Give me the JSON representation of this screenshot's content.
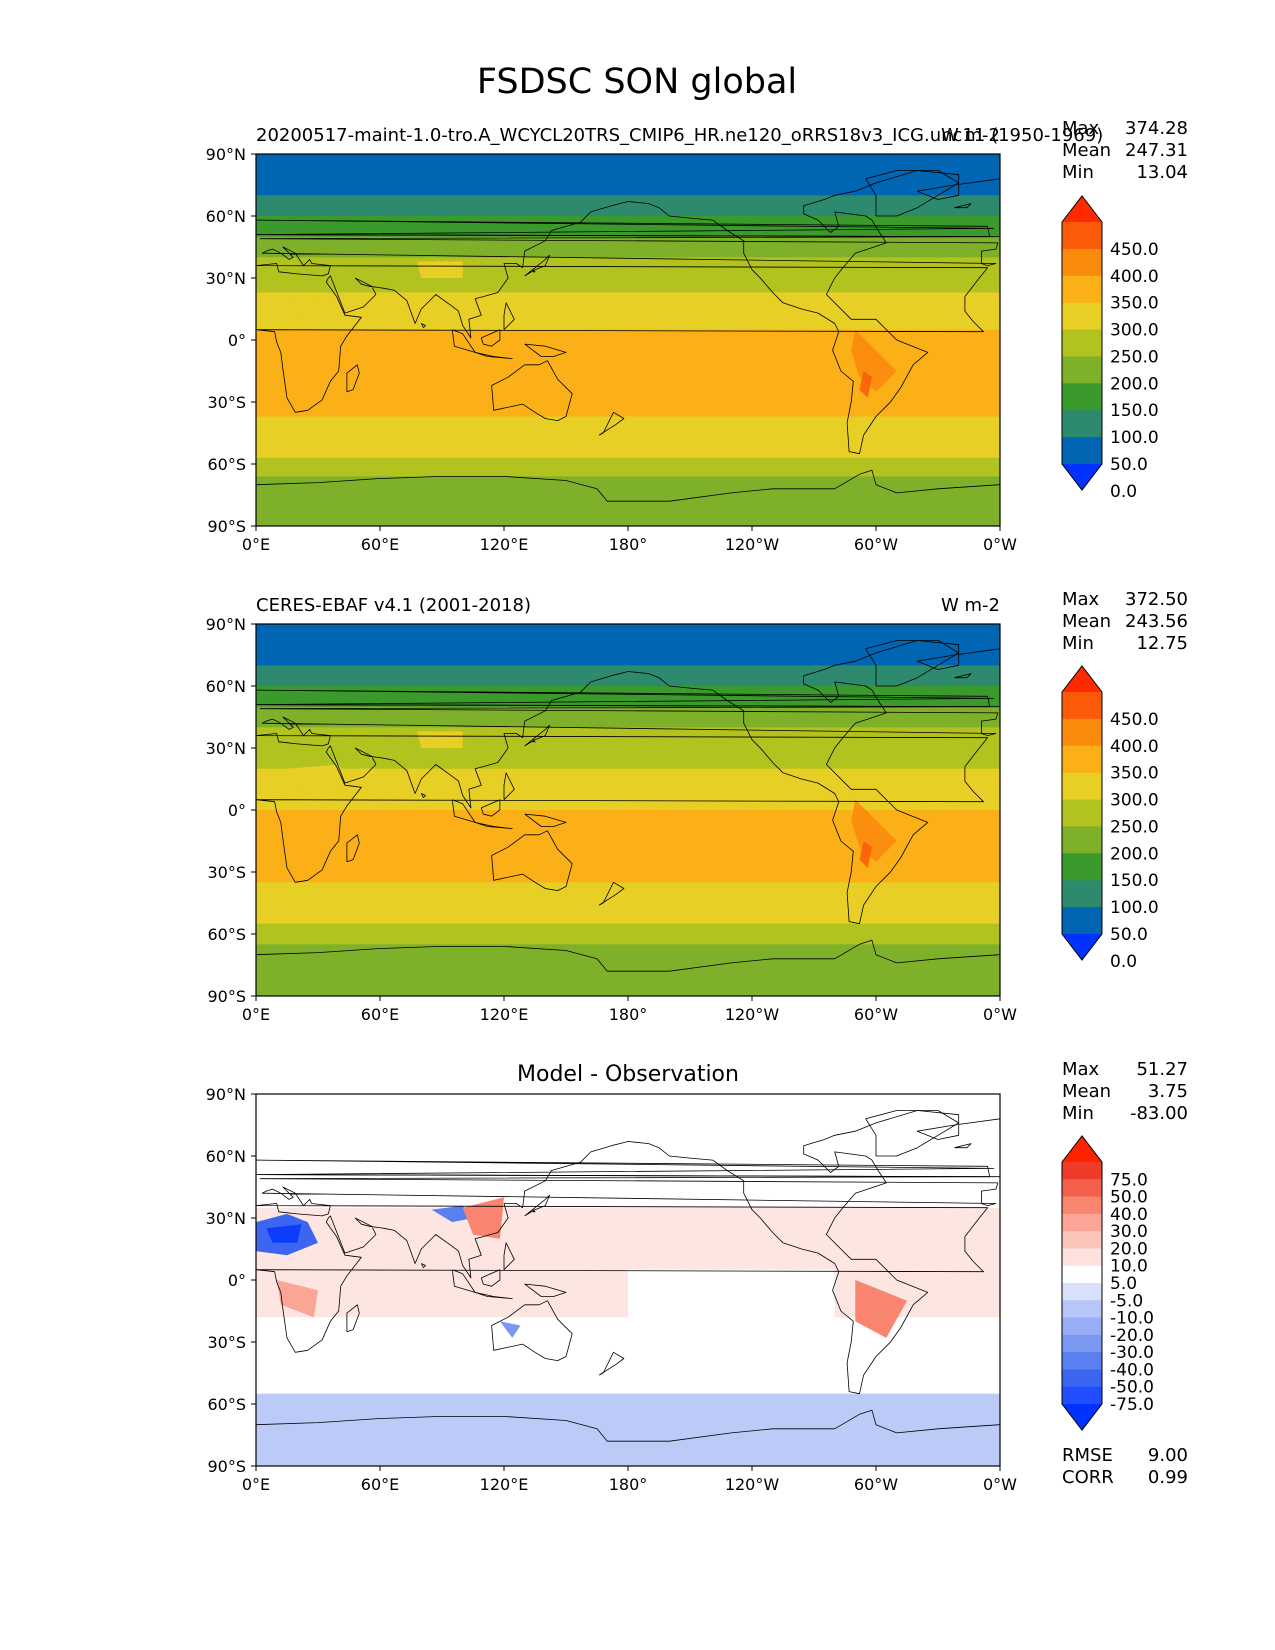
{
  "figure_title": "FSDSC SON global",
  "chart_data": [
    {
      "type": "heatmap",
      "panel": "model",
      "title_left": "20200517-maint-1.0-tro.A_WCYCL20TRS_CMIP6_HR.ne120_oRRS18v3_ICG.unc11 (1950-1969)",
      "title_right": "W m-2",
      "stats": {
        "max": "374.28",
        "mean": "247.31",
        "min": "13.04"
      },
      "stat_labels": {
        "max": "Max",
        "mean": "Mean",
        "min": "Min"
      },
      "colorbar_ticks": [
        "450.0",
        "400.0",
        "350.0",
        "300.0",
        "250.0",
        "200.0",
        "150.0",
        "100.0",
        "50.0",
        "0.0"
      ],
      "colorbar_colors": [
        "#0033ff",
        "#0066b3",
        "#2e8a6e",
        "#3a9a2b",
        "#7fb02a",
        "#b2c21e",
        "#e8cf25",
        "#fbb017",
        "#fb8b0d",
        "#fb5a09",
        "#ff2a00"
      ],
      "band_values_by_latitude": [
        {
          "lat_range": [
            70,
            90
          ],
          "value": "0-50"
        },
        {
          "lat_range": [
            60,
            70
          ],
          "value": "50-100"
        },
        {
          "lat_range": [
            50,
            60
          ],
          "value": "100-150"
        },
        {
          "lat_range": [
            40,
            50
          ],
          "value": "150-200"
        },
        {
          "lat_range": [
            23,
            40
          ],
          "value": "200-250"
        },
        {
          "lat_range": [
            5,
            23
          ],
          "value": "250-300"
        },
        {
          "lat_range": [
            -37,
            5
          ],
          "value": "300-350"
        },
        {
          "lat_range": [
            -57,
            -37
          ],
          "value": "250-300"
        },
        {
          "lat_range": [
            -66,
            -57
          ],
          "value": "200-250"
        },
        {
          "lat_range": [
            -90,
            -66
          ],
          "value": "150-200"
        }
      ]
    },
    {
      "type": "heatmap",
      "panel": "observation",
      "title_left": "CERES-EBAF v4.1 (2001-2018)",
      "title_right": "W m-2",
      "stats": {
        "max": "372.50",
        "mean": "243.56",
        "min": "12.75"
      },
      "stat_labels": {
        "max": "Max",
        "mean": "Mean",
        "min": "Min"
      },
      "colorbar_ticks": [
        "450.0",
        "400.0",
        "350.0",
        "300.0",
        "250.0",
        "200.0",
        "150.0",
        "100.0",
        "50.0",
        "0.0"
      ],
      "colorbar_colors": [
        "#0033ff",
        "#0066b3",
        "#2e8a6e",
        "#3a9a2b",
        "#7fb02a",
        "#b2c21e",
        "#e8cf25",
        "#fbb017",
        "#fb8b0d",
        "#fb5a09",
        "#ff2a00"
      ],
      "band_values_by_latitude": [
        {
          "lat_range": [
            70,
            90
          ],
          "value": "0-50"
        },
        {
          "lat_range": [
            60,
            70
          ],
          "value": "50-100"
        },
        {
          "lat_range": [
            50,
            60
          ],
          "value": "100-150"
        },
        {
          "lat_range": [
            40,
            50
          ],
          "value": "150-200"
        },
        {
          "lat_range": [
            20,
            40
          ],
          "value": "200-250"
        },
        {
          "lat_range": [
            0,
            20
          ],
          "value": "250-300"
        },
        {
          "lat_range": [
            -35,
            0
          ],
          "value": "300-350"
        },
        {
          "lat_range": [
            -55,
            -35
          ],
          "value": "250-300"
        },
        {
          "lat_range": [
            -65,
            -55
          ],
          "value": "200-250"
        },
        {
          "lat_range": [
            -90,
            -65
          ],
          "value": "150-200"
        }
      ]
    },
    {
      "type": "heatmap",
      "panel": "difference",
      "title_center": "Model - Observation",
      "stats": {
        "max": "51.27",
        "mean": "3.75",
        "min": "-83.00"
      },
      "stat_labels": {
        "max": "Max",
        "mean": "Mean",
        "min": "Min"
      },
      "extra_stats": [
        {
          "label": "RMSE",
          "value": "9.00"
        },
        {
          "label": "CORR",
          "value": "0.99"
        }
      ],
      "colorbar_ticks": [
        "75.0",
        "50.0",
        "40.0",
        "30.0",
        "20.0",
        "10.0",
        "5.0",
        "-5.0",
        "-10.0",
        "-20.0",
        "-30.0",
        "-40.0",
        "-50.0",
        "-75.0"
      ],
      "colorbar_colors": [
        "#0033ff",
        "#1f4dff",
        "#3d66f0",
        "#5a7ff0",
        "#7a97f2",
        "#98adf5",
        "#b7c5f8",
        "#d8e0fb",
        "#ffffff",
        "#fde2de",
        "#fcc5bc",
        "#fba596",
        "#f98470",
        "#f5604c",
        "#f03a2a",
        "#ff2200"
      ],
      "features": [
        {
          "region": "Southern Ocean",
          "lat_range": [
            -80,
            -55
          ],
          "value": "-10 to -20"
        },
        {
          "region": "Sahara",
          "lat_range": [
            15,
            28
          ],
          "value": "-30 to -75"
        },
        {
          "region": "South America",
          "lat_range": [
            -25,
            5
          ],
          "value": "20 to 40"
        },
        {
          "region": "Africa",
          "lat_range": [
            -20,
            5
          ],
          "value": "20 to 30"
        },
        {
          "region": "China",
          "lat_range": [
            20,
            40
          ],
          "value": "20 to 40"
        }
      ]
    }
  ],
  "axes": {
    "x_ticks": [
      "0°E",
      "60°E",
      "120°E",
      "180°",
      "120°W",
      "60°W",
      "0°W"
    ],
    "y_ticks": [
      "90°N",
      "60°N",
      "30°N",
      "0°",
      "30°S",
      "60°S",
      "90°S"
    ],
    "xlim": [
      0,
      360
    ],
    "ylim": [
      -90,
      90
    ]
  }
}
